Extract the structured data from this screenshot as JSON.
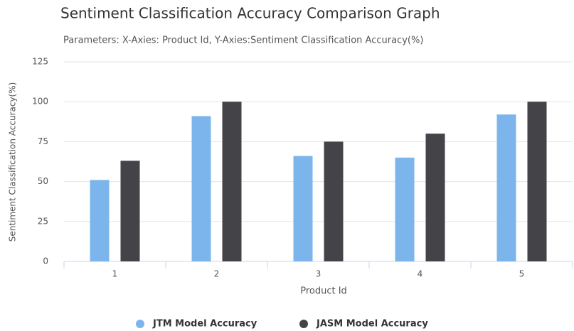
{
  "chart_data": {
    "type": "bar",
    "title": "Sentiment Classification Accuracy Comparison Graph",
    "subtitle": "Parameters: X-Axies: Product Id, Y-Axies:Sentiment Classification Accuracy(%)",
    "x_label": "Product Id",
    "y_label": "Sentiment Classification Accuracy(%)",
    "categories": [
      "1",
      "2",
      "3",
      "4",
      "5"
    ],
    "series": [
      {
        "name": "JTM Model Accuracy",
        "color": "#7cb5ec",
        "values": [
          51,
          91,
          66,
          65,
          92
        ]
      },
      {
        "name": "JASM Model Accuracy",
        "color": "#434348",
        "values": [
          63,
          100,
          75,
          80,
          100
        ]
      }
    ],
    "ylim": [
      0,
      125
    ],
    "yticks": [
      0,
      25,
      50,
      75,
      100,
      125
    ],
    "grid": true
  }
}
